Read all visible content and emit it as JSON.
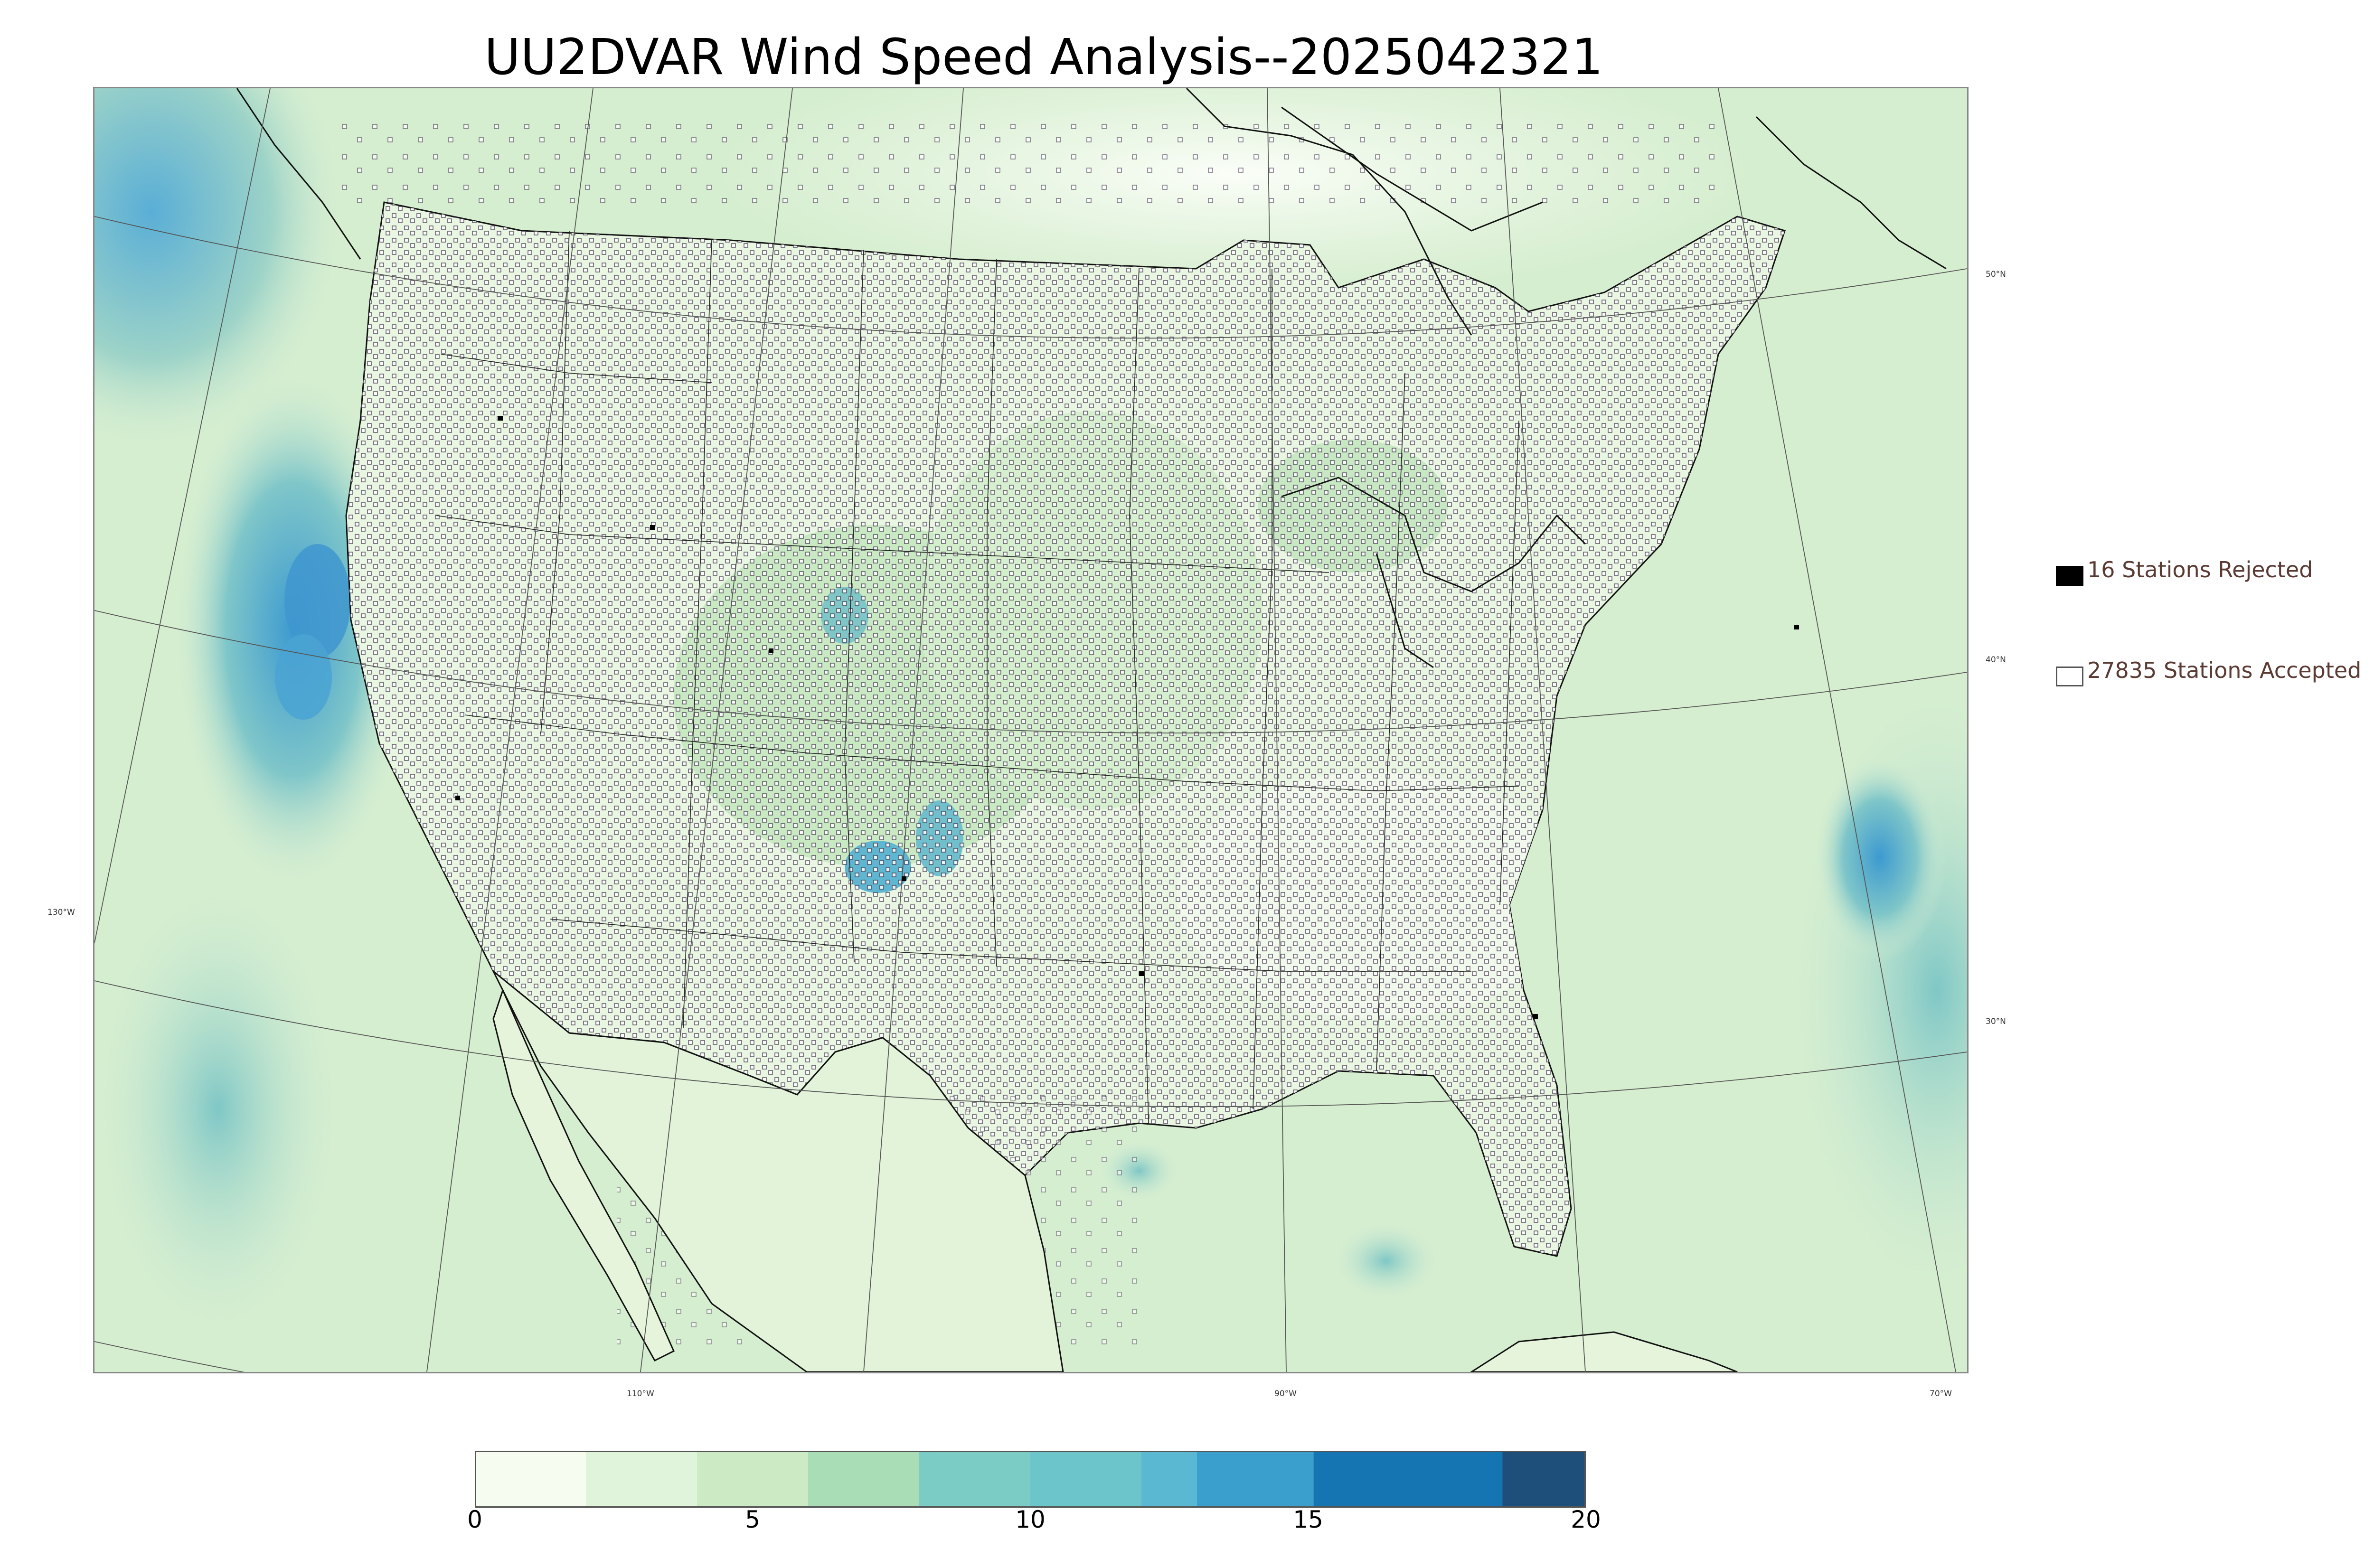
{
  "title": "UU2DVAR Wind Speed Analysis--2025042321",
  "graticule": {
    "longitude_labels": [
      "130°W",
      "110°W",
      "90°W",
      "70°W"
    ],
    "latitude_labels": [
      "50°N",
      "40°N",
      "30°N"
    ]
  },
  "legend": {
    "rejected": {
      "count": 16,
      "label": "16 Stations Rejected",
      "swatch_color": "#000000"
    },
    "accepted": {
      "count": 27835,
      "label": "27835 Stations Accepted",
      "swatch_color": "#ffffff"
    }
  },
  "colorbar": {
    "min": 0,
    "max": 20,
    "ticks": [
      "0",
      "5",
      "10",
      "15",
      "20"
    ],
    "colors": [
      {
        "from": 0,
        "to": 2,
        "color": "#f7fcf0"
      },
      {
        "from": 2,
        "to": 4,
        "color": "#e0f3db"
      },
      {
        "from": 4,
        "to": 6,
        "color": "#ccebc5"
      },
      {
        "from": 6,
        "to": 8,
        "color": "#a8ddb5"
      },
      {
        "from": 8,
        "to": 10,
        "color": "#7bccc4"
      },
      {
        "from": 10,
        "to": 12,
        "color": "#6cc5cb"
      },
      {
        "from": 12,
        "to": 13,
        "color": "#5bb8d2"
      },
      {
        "from": 13,
        "to": 15.1,
        "color": "#3a9fcd"
      },
      {
        "from": 15.1,
        "to": 18.5,
        "color": "#1575b3"
      },
      {
        "from": 18.5,
        "to": 20,
        "color": "#1d4f7a"
      }
    ]
  },
  "map_colors": {
    "land_base": "#e6f4dc",
    "ocean_base": "#d8efd2",
    "coast_line": "#111111",
    "border_line": "#222222",
    "graticule_line": "#555555",
    "station_marker": "#4a3f57"
  }
}
